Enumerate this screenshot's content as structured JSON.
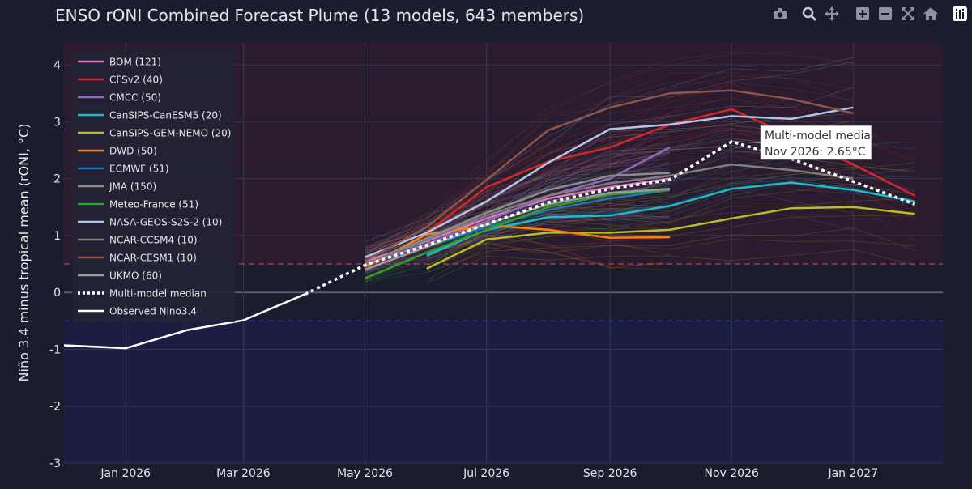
{
  "title": "ENSO rONI Combined Forecast Plume (13 models, 643 members)",
  "modebar": [
    {
      "icon": "camera-icon",
      "label": "Download plot as a png"
    },
    {
      "icon": "zoom-icon",
      "label": "Zoom"
    },
    {
      "icon": "pan-icon",
      "label": "Pan"
    },
    {
      "icon": "zoom-in-icon",
      "label": "Zoom in"
    },
    {
      "icon": "zoom-out-icon",
      "label": "Zoom out"
    },
    {
      "icon": "autoscale-icon",
      "label": "Autoscale"
    },
    {
      "icon": "home-icon",
      "label": "Reset axes"
    }
  ],
  "logo_icon": "plotly-logo-icon",
  "colors": {
    "background": "#1b1c2e",
    "el_nino_band": "#2b1b2e",
    "la_nina_band": "#1b1d42",
    "threshold_positive": "#c83a48",
    "threshold_negative": "#2a3a9a",
    "median": "#ffffff",
    "observed": "#ffffff"
  },
  "chart_data": {
    "type": "line",
    "title": "ENSO rONI Combined Forecast Plume (13 models, 643 members)",
    "xlabel": "",
    "ylabel": "Niño 3.4 minus tropical mean (rONI, °C)",
    "xlim": [
      "2025-12-01",
      "2027-02-15"
    ],
    "ylim": [
      -3,
      4.4
    ],
    "x_ticks": [
      {
        "date": "2026-01-01",
        "label": "Jan 2026"
      },
      {
        "date": "2026-03-01",
        "label": "Mar 2026"
      },
      {
        "date": "2026-05-01",
        "label": "May 2026"
      },
      {
        "date": "2026-07-01",
        "label": "Jul 2026"
      },
      {
        "date": "2026-09-01",
        "label": "Sep 2026"
      },
      {
        "date": "2026-11-01",
        "label": "Nov 2026"
      },
      {
        "date": "2027-01-01",
        "label": "Jan 2027"
      }
    ],
    "y_ticks": [
      -3,
      -2,
      -1,
      0,
      1,
      2,
      3,
      4
    ],
    "grid": true,
    "legend_position": "top-left",
    "thresholds": [
      0.5,
      -0.5
    ],
    "el_nino_shading_above": 0.5,
    "la_nina_shading_below": -0.5,
    "observed": {
      "name": "Observed Nino3.4",
      "x": [
        "2025-12-01",
        "2026-01-01",
        "2026-02-01",
        "2026-03-01",
        "2026-04-01"
      ],
      "y": [
        -0.93,
        -0.98,
        -0.66,
        -0.49,
        -0.03
      ]
    },
    "median": {
      "name": "Multi-model median",
      "x": [
        "2026-04-01",
        "2026-05-01",
        "2026-06-01",
        "2026-07-01",
        "2026-08-01",
        "2026-09-01",
        "2026-10-01",
        "2026-11-01",
        "2026-12-01",
        "2027-01-01",
        "2027-02-01"
      ],
      "y": [
        -0.03,
        0.48,
        0.83,
        1.2,
        1.58,
        1.82,
        1.98,
        2.65,
        2.35,
        1.95,
        1.55
      ]
    },
    "annotation": {
      "text_line1": "Multi-model median",
      "text_line2": "Nov 2026: 2.65°C",
      "x": "2026-11-01",
      "y": 2.65
    },
    "series": [
      {
        "name": "BOM (121)",
        "color": "#e377c2",
        "x": [
          "2026-05-01",
          "2026-06-01",
          "2026-07-01",
          "2026-08-01",
          "2026-09-01",
          "2026-10-01"
        ],
        "y": [
          0.55,
          0.9,
          1.3,
          1.65,
          1.85,
          2.0
        ]
      },
      {
        "name": "CFSv2 (40)",
        "color": "#d62728",
        "x": [
          "2026-06-01",
          "2026-07-01",
          "2026-08-01",
          "2026-09-01",
          "2026-10-01",
          "2026-11-01",
          "2026-12-01",
          "2027-01-01",
          "2027-02-01"
        ],
        "y": [
          1.05,
          1.85,
          2.3,
          2.55,
          2.95,
          3.22,
          2.75,
          2.25,
          1.7
        ]
      },
      {
        "name": "CMCC (50)",
        "color": "#9467bd",
        "x": [
          "2026-05-01",
          "2026-06-01",
          "2026-07-01",
          "2026-08-01",
          "2026-09-01",
          "2026-10-01"
        ],
        "y": [
          0.5,
          0.85,
          1.25,
          1.7,
          2.0,
          2.55
        ]
      },
      {
        "name": "CanSIPS-CanESM5 (20)",
        "color": "#17becf",
        "x": [
          "2026-06-01",
          "2026-07-01",
          "2026-08-01",
          "2026-09-01",
          "2026-10-01",
          "2026-11-01",
          "2026-12-01",
          "2027-01-01",
          "2027-02-01"
        ],
        "y": [
          0.65,
          1.1,
          1.32,
          1.35,
          1.52,
          1.82,
          1.93,
          1.8,
          1.6
        ]
      },
      {
        "name": "CanSIPS-GEM-NEMO (20)",
        "color": "#bcbd22",
        "x": [
          "2026-06-01",
          "2026-07-01",
          "2026-08-01",
          "2026-09-01",
          "2026-10-01",
          "2026-11-01",
          "2026-12-01",
          "2027-01-01",
          "2027-02-01"
        ],
        "y": [
          0.42,
          0.93,
          1.05,
          1.05,
          1.1,
          1.3,
          1.48,
          1.5,
          1.38
        ]
      },
      {
        "name": "DWD (50)",
        "color": "#ff7f0e",
        "x": [
          "2026-05-01",
          "2026-06-01",
          "2026-07-01",
          "2026-08-01",
          "2026-09-01",
          "2026-10-01"
        ],
        "y": [
          0.45,
          1.02,
          1.18,
          1.1,
          0.96,
          0.97
        ]
      },
      {
        "name": "ECMWF (51)",
        "color": "#1f77b4",
        "x": [
          "2026-05-01",
          "2026-06-01",
          "2026-07-01",
          "2026-08-01",
          "2026-09-01",
          "2026-10-01"
        ],
        "y": [
          0.4,
          0.8,
          1.15,
          1.45,
          1.65,
          1.8
        ]
      },
      {
        "name": "JMA (150)",
        "color": "#8c8c8c",
        "x": [
          "2026-05-01",
          "2026-06-01",
          "2026-07-01",
          "2026-08-01",
          "2026-09-01",
          "2026-10-01"
        ],
        "y": [
          0.5,
          0.95,
          1.4,
          1.8,
          2.05,
          2.1
        ]
      },
      {
        "name": "Meteo-France (51)",
        "color": "#2ca02c",
        "x": [
          "2026-05-01",
          "2026-06-01",
          "2026-07-01",
          "2026-08-01",
          "2026-09-01",
          "2026-10-01"
        ],
        "y": [
          0.25,
          0.7,
          1.1,
          1.5,
          1.72,
          1.8
        ]
      },
      {
        "name": "NASA-GEOS-S2S-2 (10)",
        "color": "#aec7e8",
        "x": [
          "2026-05-01",
          "2026-06-01",
          "2026-07-01",
          "2026-08-01",
          "2026-09-01",
          "2026-10-01",
          "2026-11-01",
          "2026-12-01",
          "2027-01-01"
        ],
        "y": [
          0.62,
          1.05,
          1.6,
          2.28,
          2.87,
          2.95,
          3.1,
          3.05,
          3.25
        ]
      },
      {
        "name": "NCAR-CCSM4 (10)",
        "color": "#7f7f7f",
        "x": [
          "2026-05-01",
          "2026-06-01",
          "2026-07-01",
          "2026-08-01",
          "2026-09-01",
          "2026-10-01",
          "2026-11-01",
          "2026-12-01",
          "2027-01-01"
        ],
        "y": [
          0.5,
          0.92,
          1.35,
          1.7,
          1.92,
          2.05,
          2.25,
          2.15,
          2.0
        ]
      },
      {
        "name": "NCAR-CESM1 (10)",
        "color": "#8c564b",
        "x": [
          "2026-05-01",
          "2026-06-01",
          "2026-07-01",
          "2026-08-01",
          "2026-09-01",
          "2026-10-01",
          "2026-11-01",
          "2026-12-01",
          "2027-01-01"
        ],
        "y": [
          0.55,
          1.15,
          1.98,
          2.85,
          3.25,
          3.5,
          3.55,
          3.4,
          3.15
        ]
      },
      {
        "name": "UKMO (60)",
        "color": "#9a9a9a",
        "x": [
          "2026-05-01",
          "2026-06-01",
          "2026-07-01",
          "2026-08-01",
          "2026-09-01",
          "2026-10-01"
        ],
        "y": [
          0.4,
          0.8,
          1.2,
          1.55,
          1.75,
          1.82
        ]
      }
    ],
    "legend_extra": [
      {
        "name": "Multi-model median",
        "style": "dotted",
        "color": "#ffffff"
      },
      {
        "name": "Observed Nino3.4",
        "style": "solid",
        "color": "#ffffff"
      }
    ]
  }
}
